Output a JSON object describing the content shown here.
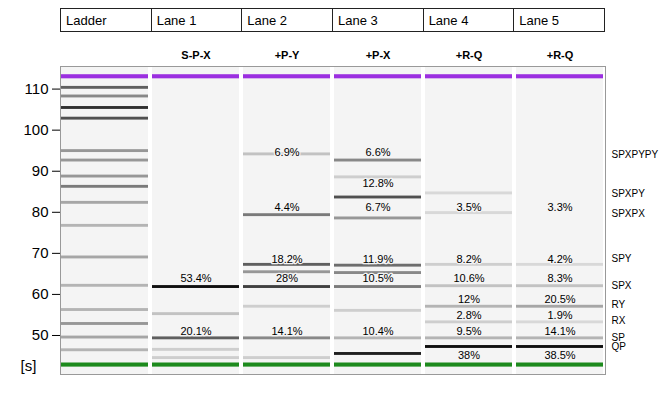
{
  "chart_data": {
    "type": "gel",
    "categories": [
      "Ladder",
      "Lane 1",
      "Lane 2",
      "Lane 3",
      "Lane 4",
      "Lane 5"
    ],
    "lane_titles": [
      null,
      "S-P-X",
      "+P-Y",
      "+P-X",
      "+R-Q",
      "+R-Q"
    ],
    "y_label": "[s]",
    "ylim": [
      40.5,
      115.5
    ],
    "yticks": [
      50,
      60,
      70,
      80,
      90,
      100,
      110
    ],
    "markers": [
      {
        "position": 113,
        "color": "#9b2fe0"
      },
      {
        "position": 42.8,
        "color": "#1d8a1d"
      }
    ],
    "lanes": [
      {
        "name": "Ladder",
        "bands": [
          {
            "position": 110.3,
            "intensity": 0.7
          },
          {
            "position": 108.2,
            "intensity": 0.55
          },
          {
            "position": 105.4,
            "intensity": 0.85
          },
          {
            "position": 102.8,
            "intensity": 0.75
          },
          {
            "position": 94.9,
            "intensity": 0.5
          },
          {
            "position": 92.6,
            "intensity": 0.5
          },
          {
            "position": 88.7,
            "intensity": 0.5
          },
          {
            "position": 86.2,
            "intensity": 0.6
          },
          {
            "position": 82.3,
            "intensity": 0.45
          },
          {
            "position": 76.7,
            "intensity": 0.4
          },
          {
            "position": 69.0,
            "intensity": 0.45
          },
          {
            "position": 62.1,
            "intensity": 0.4
          },
          {
            "position": 56.2,
            "intensity": 0.4
          },
          {
            "position": 52.8,
            "intensity": 0.5
          },
          {
            "position": 49.5,
            "intensity": 0.45
          },
          {
            "position": 46.4,
            "intensity": 0.4
          }
        ],
        "labels": []
      },
      {
        "name": "Lane 1",
        "bands": [
          {
            "position": 61.8,
            "intensity": 0.95
          },
          {
            "position": 55.2,
            "intensity": 0.35
          },
          {
            "position": 49.3,
            "intensity": 0.7
          },
          {
            "position": 46.5,
            "intensity": 0.3
          },
          {
            "position": 44.5,
            "intensity": 0.3
          }
        ],
        "labels": [
          {
            "text": "53.4%",
            "position": 63.8
          },
          {
            "text": "20.1%",
            "position": 51.0
          }
        ]
      },
      {
        "name": "Lane 2",
        "bands": [
          {
            "position": 94.1,
            "intensity": 0.35
          },
          {
            "position": 79.3,
            "intensity": 0.6
          },
          {
            "position": 67.2,
            "intensity": 0.7
          },
          {
            "position": 65.4,
            "intensity": 0.5
          },
          {
            "position": 61.8,
            "intensity": 0.8
          },
          {
            "position": 57.0,
            "intensity": 0.3
          },
          {
            "position": 49.3,
            "intensity": 0.55
          },
          {
            "position": 44.5,
            "intensity": 0.3
          }
        ],
        "labels": [
          {
            "text": "6.9%",
            "position": 94.6
          },
          {
            "text": "4.4%",
            "position": 81.2
          },
          {
            "text": "18.2%",
            "position": 68.6
          },
          {
            "text": "28%",
            "position": 63.8
          },
          {
            "text": "14.1%",
            "position": 51.0
          }
        ]
      },
      {
        "name": "Lane 3",
        "bands": [
          {
            "position": 92.6,
            "intensity": 0.55
          },
          {
            "position": 88.5,
            "intensity": 0.3
          },
          {
            "position": 83.6,
            "intensity": 0.75
          },
          {
            "position": 78.5,
            "intensity": 0.5
          },
          {
            "position": 67.0,
            "intensity": 0.65
          },
          {
            "position": 65.2,
            "intensity": 0.55
          },
          {
            "position": 61.8,
            "intensity": 0.6
          },
          {
            "position": 56.0,
            "intensity": 0.3
          },
          {
            "position": 49.3,
            "intensity": 0.4
          },
          {
            "position": 45.5,
            "intensity": 0.9
          }
        ],
        "labels": [
          {
            "text": "6.6%",
            "position": 94.6
          },
          {
            "text": "12.8%",
            "position": 87.0
          },
          {
            "text": "6.7%",
            "position": 81.2
          },
          {
            "text": "11.9%",
            "position": 68.6
          },
          {
            "text": "10.5%",
            "position": 63.8
          },
          {
            "text": "10.4%",
            "position": 51.0
          }
        ]
      },
      {
        "name": "Lane 4",
        "bands": [
          {
            "position": 84.6,
            "intensity": 0.25
          },
          {
            "position": 79.8,
            "intensity": 0.25
          },
          {
            "position": 67.2,
            "intensity": 0.3
          },
          {
            "position": 62.0,
            "intensity": 0.35
          },
          {
            "position": 57.0,
            "intensity": 0.4
          },
          {
            "position": 53.2,
            "intensity": 0.3
          },
          {
            "position": 49.3,
            "intensity": 0.4
          },
          {
            "position": 47.2,
            "intensity": 0.95
          }
        ],
        "labels": [
          {
            "text": "3.5%",
            "position": 81.2
          },
          {
            "text": "8.2%",
            "position": 68.6
          },
          {
            "text": "10.6%",
            "position": 63.8
          },
          {
            "text": "12%",
            "position": 58.8
          },
          {
            "text": "2.8%",
            "position": 54.8
          },
          {
            "text": "9.5%",
            "position": 51.0
          },
          {
            "text": "38%",
            "position": 45.2
          }
        ]
      },
      {
        "name": "Lane 5",
        "bands": [
          {
            "position": 67.2,
            "intensity": 0.25
          },
          {
            "position": 62.0,
            "intensity": 0.35
          },
          {
            "position": 57.0,
            "intensity": 0.45
          },
          {
            "position": 53.2,
            "intensity": 0.25
          },
          {
            "position": 49.3,
            "intensity": 0.4
          },
          {
            "position": 47.2,
            "intensity": 0.95
          }
        ],
        "labels": [
          {
            "text": "3.3%",
            "position": 81.2
          },
          {
            "text": "4.2%",
            "position": 68.6
          },
          {
            "text": "8.3%",
            "position": 63.8
          },
          {
            "text": "20.5%",
            "position": 58.8
          },
          {
            "text": "1.9%",
            "position": 54.8
          },
          {
            "text": "14.1%",
            "position": 51.0
          },
          {
            "text": "38.5%",
            "position": 45.2
          }
        ]
      }
    ],
    "band_annotations": [
      {
        "text": "SPXPYPY",
        "position": 94.1
      },
      {
        "text": "SPXPY",
        "position": 84.6
      },
      {
        "text": "SPXPX",
        "position": 79.7
      },
      {
        "text": "SPY",
        "position": 68.7
      },
      {
        "text": "SPX",
        "position": 62.0
      },
      {
        "text": "RY",
        "position": 57.4
      },
      {
        "text": "RX",
        "position": 53.6
      },
      {
        "text": "SP",
        "position": 49.5
      },
      {
        "text": "QP",
        "position": 47.2
      }
    ]
  }
}
